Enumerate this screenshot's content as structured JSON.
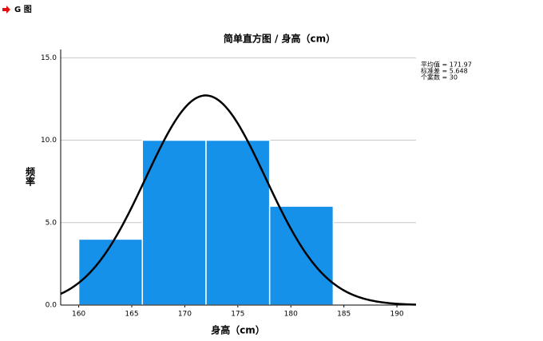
{
  "header": "G 图",
  "chart_data": {
    "type": "histogram",
    "title": "简单直方图 / 身高（cm）",
    "x_label": "身高（cm）",
    "y_label": "频率",
    "bins": [
      160,
      166,
      172,
      178,
      184
    ],
    "values": [
      4,
      10,
      10,
      6
    ],
    "color": "#1591e9",
    "xlim": [
      158.3,
      191.8
    ],
    "ylim": [
      0,
      15.5
    ],
    "xticks": [
      160,
      165,
      170,
      175,
      180,
      185,
      190
    ],
    "yticks": [
      {
        "value": 0,
        "label": "0.0"
      },
      {
        "value": 5,
        "label": "5.0"
      },
      {
        "value": 10,
        "label": "10.0"
      },
      {
        "value": 15,
        "label": "15.0"
      }
    ],
    "grid": true,
    "stats": {
      "mean": {
        "value": 171.97,
        "label": "平均值 = 171.97"
      },
      "sd": {
        "value": 5.648,
        "label": "标准差 = 5.648"
      },
      "n": {
        "value": 30,
        "label": "个案数 = 30"
      }
    }
  }
}
